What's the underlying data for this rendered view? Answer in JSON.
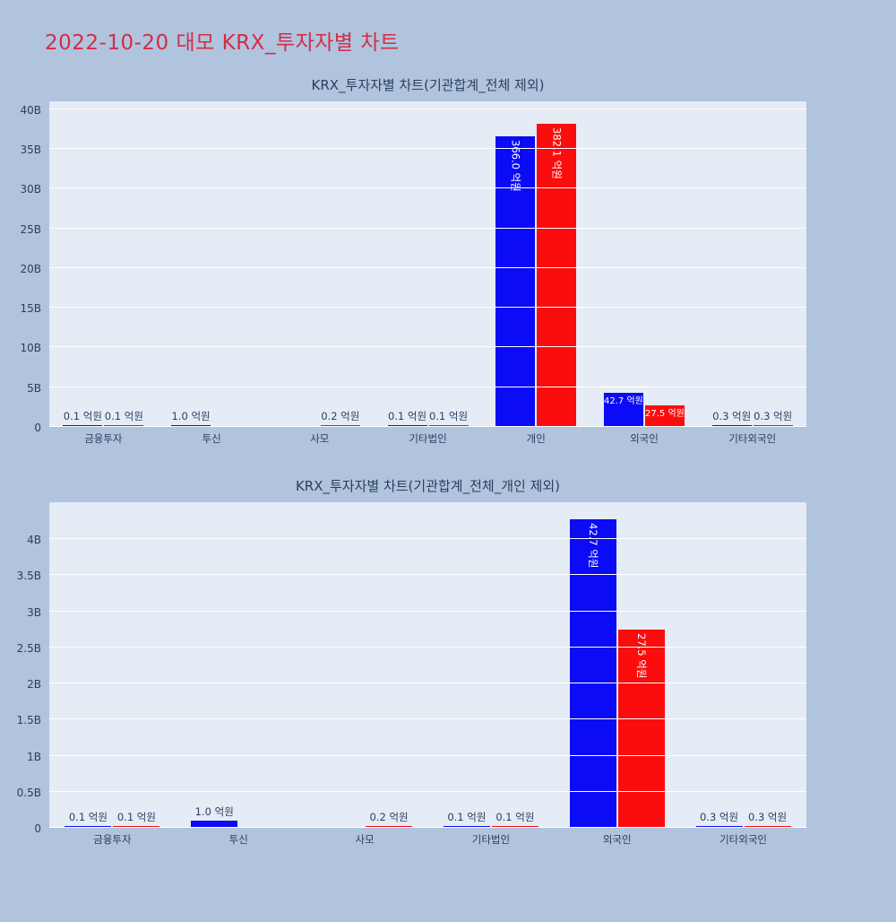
{
  "page_title": "2022-10-20 대모 KRX_투자자별 차트",
  "colors": {
    "page_bg": "#b0c4de",
    "plot_bg": "#e5ecf6",
    "page_title_red": "#d62c46",
    "axis_text": "#2a3f5f",
    "grid": "#ffffff",
    "bar_blue": "#0b0bf5",
    "bar_red": "#fb0d0d"
  },
  "unit": "억원",
  "chart_data": [
    {
      "type": "bar",
      "title": "KRX_투자자별 차트(기관합계_전체 제외)",
      "categories": [
        "금융투자",
        "투신",
        "사모",
        "기타법인",
        "개인",
        "외국인",
        "기타외국인"
      ],
      "y_ticks": [
        "0",
        "5B",
        "10B",
        "15B",
        "20B",
        "25B",
        "30B",
        "35B",
        "40B"
      ],
      "y_tick_values": [
        0,
        5,
        10,
        15,
        20,
        25,
        30,
        35,
        40
      ],
      "y_max_display": 41,
      "ylim": [
        0,
        40
      ],
      "grid": true,
      "legend": "none",
      "series": [
        {
          "key": "blue",
          "name": "blue-series",
          "color": "#0b0bf5",
          "values_B": [
            0.01,
            0.1,
            null,
            0.01,
            36.6,
            4.27,
            0.03
          ],
          "labels": [
            "0.1 억원",
            "1.0 억원",
            null,
            "0.1 억원",
            "366.0 억원",
            "42.7 억원",
            "0.3 억원"
          ],
          "label_styles": [
            "out",
            "out",
            null,
            "out",
            "in-vert",
            "in-horiz",
            "out"
          ]
        },
        {
          "key": "red",
          "name": "red-series",
          "color": "#fb0d0d",
          "values_B": [
            0.01,
            null,
            0.02,
            0.01,
            38.21,
            2.75,
            0.03
          ],
          "labels": [
            "0.1 억원",
            null,
            "0.2 억원",
            "0.1 억원",
            "382.1 억원",
            "27.5 억원",
            "0.3 억원"
          ],
          "label_styles": [
            "out",
            null,
            "out",
            "out",
            "in-vert",
            "in-horiz",
            "out"
          ]
        }
      ]
    },
    {
      "type": "bar",
      "title": "KRX_투자자별 차트(기관합계_전체_개인 제외)",
      "categories": [
        "금융투자",
        "투신",
        "사모",
        "기타법인",
        "외국인",
        "기타외국인"
      ],
      "y_ticks": [
        "0",
        "0.5B",
        "1B",
        "1.5B",
        "2B",
        "2.5B",
        "3B",
        "3.5B",
        "4B"
      ],
      "y_tick_values": [
        0,
        0.5,
        1,
        1.5,
        2,
        2.5,
        3,
        3.5,
        4
      ],
      "y_max_display": 4.51,
      "ylim": [
        0,
        4
      ],
      "grid": true,
      "legend": "none",
      "series": [
        {
          "key": "blue",
          "name": "blue-series",
          "color": "#0b0bf5",
          "values_B": [
            0.01,
            0.1,
            null,
            0.01,
            4.27,
            0.03
          ],
          "labels": [
            "0.1 억원",
            "1.0 억원",
            null,
            "0.1 억원",
            "42.7 억원",
            "0.3 억원"
          ],
          "label_styles": [
            "out",
            "out",
            null,
            "out",
            "in-vert",
            "out"
          ]
        },
        {
          "key": "red",
          "name": "red-series",
          "color": "#fb0d0d",
          "values_B": [
            0.01,
            null,
            0.02,
            0.01,
            2.75,
            0.03
          ],
          "labels": [
            "0.1 억원",
            null,
            "0.2 억원",
            "0.1 억원",
            "27.5 억원",
            "0.3 억원"
          ],
          "label_styles": [
            "out",
            null,
            "out",
            "out",
            "in-vert",
            "out"
          ]
        }
      ]
    }
  ]
}
